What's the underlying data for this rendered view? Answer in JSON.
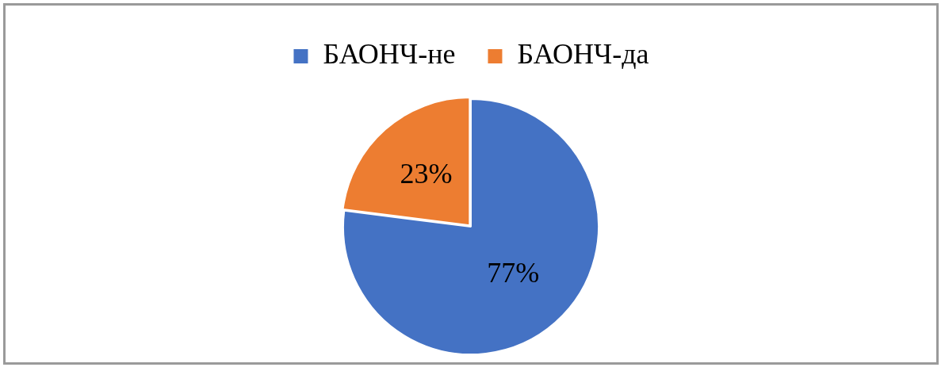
{
  "chart_data": {
    "type": "pie",
    "categories": [
      "БАОНЧ-не",
      "БАОНЧ-да"
    ],
    "values": [
      77,
      23
    ],
    "colors": [
      "#4472c4",
      "#ed7d31"
    ],
    "value_labels": [
      "77%",
      "23%"
    ],
    "legend": "top"
  }
}
